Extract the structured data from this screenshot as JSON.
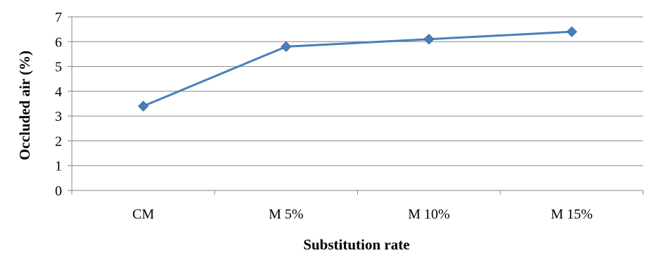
{
  "chart_data": {
    "type": "line",
    "title": "",
    "xlabel": "Substitution rate",
    "ylabel": "Occluded air (%)",
    "categories": [
      "CM",
      "M 5%",
      "M 10%",
      "M 15%"
    ],
    "series": [
      {
        "values": [
          3.4,
          5.8,
          6.1,
          6.4
        ]
      }
    ],
    "ylim": [
      0,
      7
    ],
    "yticks": [
      "0",
      "1",
      "2",
      "3",
      "4",
      "5",
      "6",
      "7"
    ],
    "grid": true,
    "legend": "none",
    "line_color": "#4A7EBB",
    "marker": "diamond"
  }
}
